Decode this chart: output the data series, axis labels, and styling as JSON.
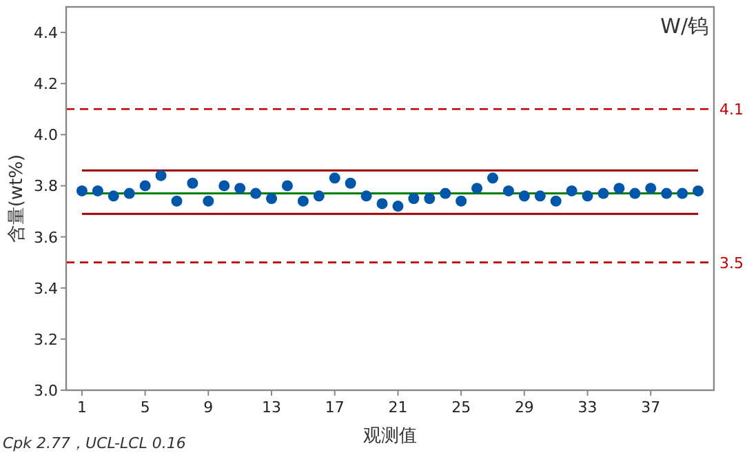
{
  "chart_data": {
    "type": "scatter",
    "title": "W/钨",
    "xlabel": "观测值",
    "ylabel": "含量(wt%)",
    "annotations": [
      "Cpk 2.77，UCL-LCL 0.16"
    ],
    "x": [
      1,
      2,
      3,
      4,
      5,
      6,
      7,
      8,
      9,
      10,
      11,
      12,
      13,
      14,
      15,
      16,
      17,
      18,
      19,
      20,
      21,
      22,
      23,
      24,
      25,
      26,
      27,
      28,
      29,
      30,
      31,
      32,
      33,
      34,
      35,
      36,
      37,
      38,
      39,
      40
    ],
    "series": [
      {
        "type": "line",
        "marker": "none",
        "color": "#990000",
        "values": [
          3.86,
          3.86,
          3.86,
          3.86,
          3.86,
          3.86,
          3.86,
          3.86,
          3.86,
          3.86,
          3.86,
          3.86,
          3.86,
          3.86,
          3.86,
          3.86,
          3.86,
          3.86,
          3.86,
          3.86,
          3.86,
          3.86,
          3.86,
          3.86,
          3.86,
          3.86,
          3.86,
          3.86,
          3.86,
          3.86,
          3.86,
          3.86,
          3.86,
          3.86,
          3.86,
          3.86,
          3.86,
          3.86,
          3.86,
          3.86
        ]
      },
      {
        "type": "line",
        "marker": "none",
        "color": "#008000",
        "values": [
          3.77,
          3.77,
          3.77,
          3.77,
          3.77,
          3.77,
          3.77,
          3.77,
          3.77,
          3.77,
          3.77,
          3.77,
          3.77,
          3.77,
          3.77,
          3.77,
          3.77,
          3.77,
          3.77,
          3.77,
          3.77,
          3.77,
          3.77,
          3.77,
          3.77,
          3.77,
          3.77,
          3.77,
          3.77,
          3.77,
          3.77,
          3.77,
          3.77,
          3.77,
          3.77,
          3.77,
          3.77,
          3.77,
          3.77,
          3.77
        ]
      },
      {
        "type": "line",
        "marker": "none",
        "color": "#990000",
        "values": [
          3.69,
          3.69,
          3.69,
          3.69,
          3.69,
          3.69,
          3.69,
          3.69,
          3.69,
          3.69,
          3.69,
          3.69,
          3.69,
          3.69,
          3.69,
          3.69,
          3.69,
          3.69,
          3.69,
          3.69,
          3.69,
          3.69,
          3.69,
          3.69,
          3.69,
          3.69,
          3.69,
          3.69,
          3.69,
          3.69,
          3.69,
          3.69,
          3.69,
          3.69,
          3.69,
          3.69,
          3.69,
          3.69,
          3.69,
          3.69
        ]
      },
      {
        "marker": "circle",
        "color": "#0056a8",
        "values": [
          3.78,
          3.78,
          3.76,
          3.77,
          3.8,
          3.84,
          3.74,
          3.81,
          3.74,
          3.8,
          3.79,
          3.77,
          3.75,
          3.8,
          3.74,
          3.76,
          3.83,
          3.81,
          3.76,
          3.73,
          3.72,
          3.75,
          3.75,
          3.77,
          3.74,
          3.79,
          3.83,
          3.78,
          3.76,
          3.76,
          3.74,
          3.78,
          3.76,
          3.77,
          3.79,
          3.77,
          3.79,
          3.77,
          3.77,
          3.78
        ]
      }
    ],
    "ref_lines": [
      {
        "axis": "y",
        "value": 4.1,
        "label": "4.1",
        "color": "#c00000",
        "line_style": "dashed"
      },
      {
        "axis": "y",
        "value": 3.5,
        "label": "3.5",
        "color": "#c00000",
        "line_style": "dashed"
      }
    ],
    "xlim": [
      0,
      41
    ],
    "xticks": [
      1,
      5,
      9,
      13,
      17,
      21,
      25,
      29,
      33,
      37
    ],
    "ylim": [
      3.0,
      4.5
    ],
    "yticks": [
      {
        "value": 3.0,
        "label": "3.0"
      },
      3.2,
      3.4,
      3.6,
      3.8,
      {
        "value": 4.0,
        "label": "4.0"
      },
      4.2,
      4.4
    ],
    "grid": false
  }
}
